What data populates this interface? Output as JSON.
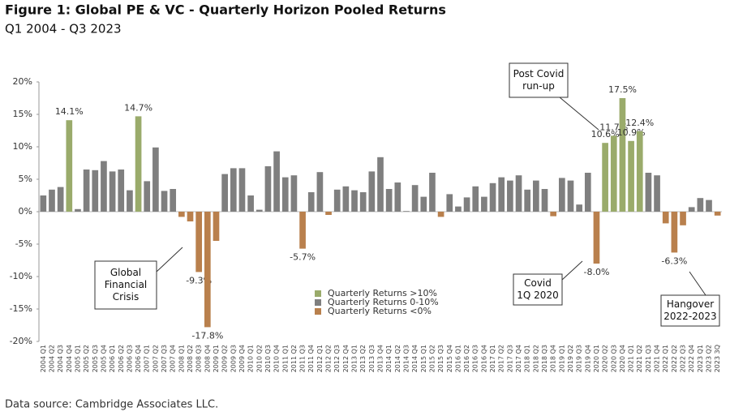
{
  "chart_data": {
    "type": "bar",
    "title": "Figure 1: Global PE & VC - Quarterly Horizon Pooled Returns",
    "subtitle": "Q1 2004 - Q3 2023",
    "source": "Data source: Cambridge Associates LLC.",
    "categories": [
      "2004 Q1",
      "2004 Q2",
      "2004 Q3",
      "2004 Q4",
      "2005 Q1",
      "2005 Q2",
      "2005 Q3",
      "2005 Q4",
      "2006 Q1",
      "2006 Q2",
      "2006 Q3",
      "2006 Q4",
      "2007 Q1",
      "2007 Q2",
      "2007 Q3",
      "2007 Q4",
      "2008 Q1",
      "2008 Q2",
      "2008 Q3",
      "2008 Q4",
      "2009 Q1",
      "2009 Q2",
      "2009 Q3",
      "2009 Q4",
      "2010 Q1",
      "2010 Q2",
      "2010 Q3",
      "2010 Q4",
      "2011 Q1",
      "2011 Q2",
      "2011 Q3",
      "2011 Q4",
      "2012 Q1",
      "2012 Q2",
      "2012 Q3",
      "2012 Q4",
      "2013 Q1",
      "2013 Q2",
      "2013 Q3",
      "2013 Q4",
      "2014 Q1",
      "2014 Q2",
      "2014 Q3",
      "2014 Q4",
      "2015 Q1",
      "2015 Q2",
      "2015 Q3",
      "2015 Q4",
      "2016 Q1",
      "2016 Q2",
      "2016 Q3",
      "2016 Q4",
      "2017 Q1",
      "2017 Q2",
      "2017 Q3",
      "2017 Q4",
      "2018 Q1",
      "2018 Q2",
      "2018 Q3",
      "2018 Q4",
      "2019 Q1",
      "2019 Q2",
      "2019 Q3",
      "2019 Q4",
      "2020 Q1",
      "2020 Q2",
      "2020 Q3",
      "2020 Q4",
      "2021 Q1",
      "2021 Q2",
      "2021 Q3",
      "2021 Q4",
      "2022 Q1",
      "2022 Q2",
      "2022 Q3",
      "2022 Q4",
      "2023 Q1",
      "2023 Q2",
      "2023 3Q"
    ],
    "series": [
      {
        "name": "Quarterly Returns >10%",
        "color": "#9aab6b",
        "values": [
          null,
          null,
          null,
          14.1,
          null,
          null,
          null,
          null,
          null,
          null,
          null,
          14.7,
          null,
          null,
          null,
          null,
          null,
          null,
          null,
          null,
          null,
          null,
          null,
          null,
          null,
          null,
          null,
          null,
          null,
          null,
          null,
          null,
          null,
          null,
          null,
          null,
          null,
          null,
          null,
          null,
          null,
          null,
          null,
          null,
          null,
          null,
          null,
          null,
          null,
          null,
          null,
          null,
          null,
          null,
          null,
          null,
          null,
          null,
          null,
          null,
          null,
          null,
          null,
          null,
          null,
          10.6,
          11.7,
          17.5,
          10.9,
          12.4,
          null,
          null,
          null,
          null,
          null,
          null,
          null,
          null,
          null
        ],
        "value_labels": [
          null,
          null,
          null,
          "14.1%",
          null,
          null,
          null,
          null,
          null,
          null,
          null,
          "14.7%",
          null,
          null,
          null,
          null,
          null,
          null,
          null,
          null,
          null,
          null,
          null,
          null,
          null,
          null,
          null,
          null,
          null,
          null,
          null,
          null,
          null,
          null,
          null,
          null,
          null,
          null,
          null,
          null,
          null,
          null,
          null,
          null,
          null,
          null,
          null,
          null,
          null,
          null,
          null,
          null,
          null,
          null,
          null,
          null,
          null,
          null,
          null,
          null,
          null,
          null,
          null,
          null,
          null,
          "10.6%",
          "11.7%",
          "17.5%",
          "10.9%",
          "12.4%",
          null,
          null,
          null,
          null,
          null,
          null,
          null,
          null,
          null
        ]
      },
      {
        "name": "Quarterly Returns 0-10%",
        "color": "#7f7f7f",
        "values": [
          2.5,
          3.4,
          3.8,
          null,
          0.4,
          6.5,
          6.4,
          7.8,
          6.2,
          6.5,
          3.3,
          null,
          4.7,
          9.9,
          3.2,
          3.5,
          null,
          null,
          null,
          null,
          null,
          5.8,
          6.7,
          6.7,
          2.5,
          0.3,
          7.0,
          9.3,
          5.3,
          5.6,
          null,
          3.0,
          6.1,
          null,
          3.4,
          3.9,
          3.3,
          3.0,
          6.2,
          8.4,
          3.5,
          4.5,
          0.1,
          4.1,
          2.3,
          6.0,
          null,
          2.7,
          0.8,
          2.2,
          3.9,
          2.3,
          4.4,
          5.3,
          4.8,
          5.6,
          3.4,
          4.8,
          3.5,
          null,
          5.2,
          4.8,
          1.1,
          6.0,
          null,
          null,
          null,
          null,
          null,
          null,
          6.0,
          5.6,
          null,
          null,
          null,
          0.7,
          2.1,
          1.8,
          null
        ]
      },
      {
        "name": "Quarterly Returns <0%",
        "color": "#b9804d",
        "values": [
          null,
          null,
          null,
          null,
          null,
          null,
          null,
          null,
          null,
          null,
          null,
          null,
          null,
          null,
          null,
          null,
          -0.8,
          -1.5,
          -9.3,
          -17.8,
          -4.5,
          null,
          null,
          null,
          null,
          null,
          null,
          null,
          null,
          null,
          -5.7,
          null,
          null,
          -0.5,
          null,
          null,
          null,
          null,
          null,
          null,
          null,
          null,
          null,
          null,
          null,
          null,
          -0.8,
          null,
          null,
          null,
          null,
          null,
          null,
          null,
          null,
          null,
          null,
          null,
          null,
          -0.7,
          null,
          null,
          null,
          null,
          -8.0,
          null,
          null,
          null,
          null,
          null,
          null,
          null,
          -1.8,
          -6.3,
          -2.1,
          null,
          null,
          null,
          -0.6
        ],
        "value_labels": [
          null,
          null,
          null,
          null,
          null,
          null,
          null,
          null,
          null,
          null,
          null,
          null,
          null,
          null,
          null,
          null,
          null,
          null,
          "-9.3%",
          "-17.8%",
          null,
          null,
          null,
          null,
          null,
          null,
          null,
          null,
          null,
          null,
          "-5.7%",
          null,
          null,
          null,
          null,
          null,
          null,
          null,
          null,
          null,
          null,
          null,
          null,
          null,
          null,
          null,
          null,
          null,
          null,
          null,
          null,
          null,
          null,
          null,
          null,
          null,
          null,
          null,
          null,
          null,
          null,
          null,
          null,
          null,
          "-8.0%",
          null,
          null,
          null,
          null,
          null,
          null,
          null,
          null,
          "-6.3%",
          null,
          null,
          null,
          null,
          null
        ]
      }
    ],
    "ylim": [
      -20,
      20
    ],
    "yticks": [
      {
        "value": -20,
        "label": "-20%"
      },
      {
        "value": -15,
        "label": "-15%"
      },
      {
        "value": -10,
        "label": "-10%"
      },
      {
        "value": -5,
        "label": "-5%"
      },
      {
        "value": 0,
        "label": "0%"
      },
      {
        "value": 5,
        "label": "5%"
      },
      {
        "value": 10,
        "label": "10%"
      },
      {
        "value": 15,
        "label": "15%"
      },
      {
        "value": 20,
        "label": "20%"
      }
    ],
    "grid": false,
    "annotations": [
      {
        "lines": [
          "Global",
          "Financial",
          "Crisis"
        ]
      },
      {
        "lines": [
          "Post Covid",
          "run-up"
        ]
      },
      {
        "lines": [
          "Covid",
          "1Q 2020"
        ]
      },
      {
        "lines": [
          "Hangover",
          "2022-2023"
        ]
      }
    ]
  }
}
